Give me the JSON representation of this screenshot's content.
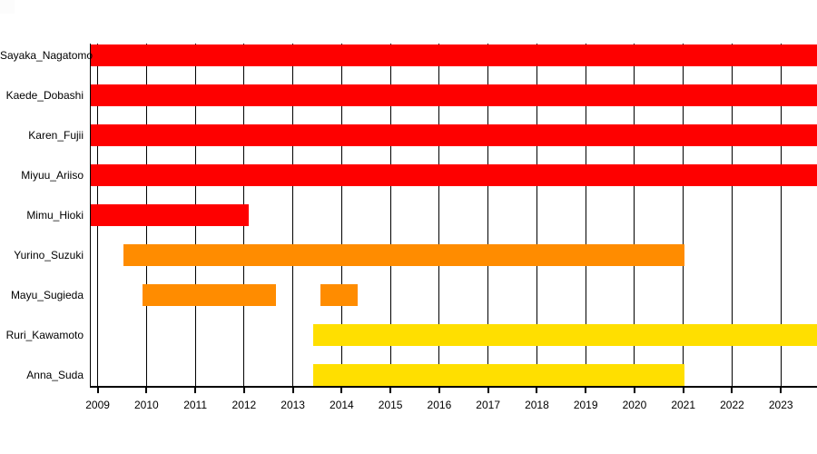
{
  "chart_data": {
    "type": "bar",
    "subtype": "gantt-timeline",
    "orientation": "horizontal",
    "title": "",
    "xlabel": "",
    "ylabel": "",
    "xlim": [
      2008.84,
      2023.74
    ],
    "xticks": [
      2009,
      2010,
      2011,
      2012,
      2013,
      2014,
      2015,
      2016,
      2017,
      2018,
      2019,
      2020,
      2021,
      2022,
      2023
    ],
    "grid": {
      "vertical": true,
      "horizontal": false,
      "color": "#000000"
    },
    "legend_position": "none",
    "rows": [
      {
        "label": "Sayaka_Nagatomo",
        "color": "#fe0000",
        "segments": [
          [
            2008.84,
            2023.74
          ]
        ]
      },
      {
        "label": "Kaede_Dobashi",
        "color": "#fe0000",
        "segments": [
          [
            2008.84,
            2023.74
          ]
        ]
      },
      {
        "label": "Karen_Fujii",
        "color": "#fe0000",
        "segments": [
          [
            2008.84,
            2023.74
          ]
        ]
      },
      {
        "label": "Miyuu_Ariiso",
        "color": "#fe0000",
        "segments": [
          [
            2008.84,
            2023.74
          ]
        ]
      },
      {
        "label": "Mimu_Hioki",
        "color": "#fe0000",
        "segments": [
          [
            2008.84,
            2012.1
          ]
        ]
      },
      {
        "label": "Yurino_Suzuki",
        "color": "#ff8c00",
        "segments": [
          [
            2009.52,
            2021.03
          ]
        ]
      },
      {
        "label": "Mayu_Sugieda",
        "color": "#ff8c00",
        "segments": [
          [
            2009.91,
            2012.65
          ],
          [
            2013.56,
            2014.33
          ]
        ]
      },
      {
        "label": "Ruri_Kawamoto",
        "color": "#ffdf00",
        "segments": [
          [
            2013.41,
            2023.74
          ]
        ]
      },
      {
        "label": "Anna_Suda",
        "color": "#ffdf00",
        "segments": [
          [
            2013.41,
            2021.03
          ]
        ]
      }
    ],
    "colors": {
      "red": "#fe0000",
      "orange": "#ff8c00",
      "yellow": "#ffdf00",
      "axis": "#000000",
      "background": "#ffffff",
      "corner_artifact": "#fcfcfc"
    }
  }
}
